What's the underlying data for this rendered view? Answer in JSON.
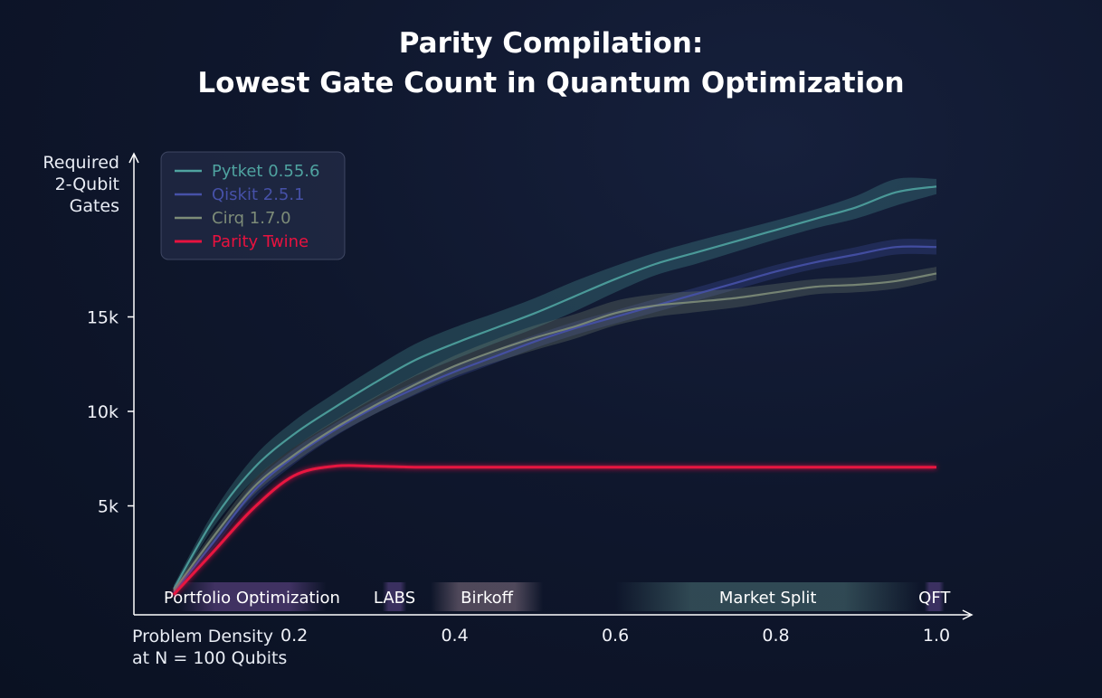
{
  "chart_data": {
    "type": "line",
    "title": "Parity Compilation:",
    "subtitle": "Lowest Gate Count in Quantum Optimization",
    "ylabel_lines": [
      "Required",
      "2-Qubit",
      "Gates"
    ],
    "xlabel_lines": [
      "Problem Density",
      "at N = 100 Qubits"
    ],
    "xlim": [
      0.05,
      1.0
    ],
    "ylim": [
      0,
      24000
    ],
    "x_ticks": [
      0.2,
      0.4,
      0.6,
      0.8,
      1.0
    ],
    "x_tick_labels": [
      "0.2",
      "0.4",
      "0.6",
      "0.8",
      "1.0"
    ],
    "y_ticks": [
      5000,
      10000,
      15000
    ],
    "y_tick_labels": [
      "5k",
      "10k",
      "15k"
    ],
    "legend_position": "top-left",
    "series": [
      {
        "name": "Pytket 0.55.6",
        "color": "#4fa3a0",
        "x": [
          0.05,
          0.1,
          0.15,
          0.2,
          0.25,
          0.3,
          0.35,
          0.4,
          0.45,
          0.5,
          0.55,
          0.6,
          0.65,
          0.7,
          0.75,
          0.8,
          0.85,
          0.9,
          0.95,
          1.0
        ],
        "y": [
          600,
          4300,
          7000,
          8800,
          10200,
          11500,
          12700,
          13600,
          14400,
          15200,
          16100,
          17000,
          17800,
          18400,
          19000,
          19600,
          20200,
          20800,
          21600,
          21900
        ],
        "band": [
          200,
          400,
          600,
          700,
          750,
          800,
          850,
          850,
          800,
          800,
          800,
          700,
          600,
          600,
          550,
          500,
          500,
          600,
          700,
          400
        ]
      },
      {
        "name": "Qiskit 2.5.1",
        "color": "#4651a8",
        "x": [
          0.05,
          0.1,
          0.15,
          0.2,
          0.25,
          0.3,
          0.35,
          0.4,
          0.45,
          0.5,
          0.55,
          0.6,
          0.65,
          0.7,
          0.75,
          0.8,
          0.85,
          0.9,
          0.95,
          1.0
        ],
        "y": [
          400,
          3100,
          5800,
          7600,
          9000,
          10200,
          11200,
          12100,
          12900,
          13700,
          14400,
          15000,
          15600,
          16200,
          16800,
          17400,
          17900,
          18300,
          18700,
          18700
        ],
        "band": [
          150,
          300,
          400,
          400,
          350,
          350,
          350,
          350,
          350,
          350,
          350,
          350,
          350,
          350,
          350,
          350,
          350,
          400,
          400,
          400
        ]
      },
      {
        "name": "Cirq 1.7.0",
        "color": "#7d8c78",
        "x": [
          0.05,
          0.1,
          0.15,
          0.2,
          0.25,
          0.3,
          0.35,
          0.4,
          0.45,
          0.5,
          0.55,
          0.6,
          0.65,
          0.7,
          0.75,
          0.8,
          0.85,
          0.9,
          0.95,
          1.0
        ],
        "y": [
          500,
          3400,
          6000,
          7700,
          9100,
          10300,
          11400,
          12400,
          13200,
          13900,
          14500,
          15200,
          15600,
          15800,
          16000,
          16300,
          16600,
          16700,
          16900,
          17300
        ],
        "band": [
          150,
          300,
          400,
          400,
          400,
          450,
          500,
          550,
          600,
          650,
          650,
          650,
          600,
          550,
          500,
          450,
          400,
          400,
          400,
          350
        ]
      },
      {
        "name": "Parity Twine",
        "color": "#e8123f",
        "x": [
          0.05,
          0.1,
          0.15,
          0.2,
          0.25,
          0.3,
          0.35,
          0.4,
          0.45,
          0.5,
          0.6,
          0.7,
          0.8,
          0.9,
          1.0
        ],
        "y": [
          300,
          2600,
          4900,
          6600,
          7100,
          7100,
          7050,
          7050,
          7050,
          7050,
          7050,
          7050,
          7050,
          7050,
          7050
        ],
        "band": [
          0,
          0,
          0,
          0,
          0,
          0,
          0,
          0,
          0,
          0,
          0,
          0,
          0,
          0,
          0
        ]
      }
    ],
    "regions": [
      {
        "label": "Portfolio Optimization",
        "x_start": 0.055,
        "x_end": 0.24,
        "color": "#a06ad0"
      },
      {
        "label": "LABS",
        "x_start": 0.31,
        "x_end": 0.34,
        "color": "#8e63c6"
      },
      {
        "label": "Birkoff",
        "x_start": 0.37,
        "x_end": 0.51,
        "color": "#c9a8b6"
      },
      {
        "label": "Market Split",
        "x_start": 0.6,
        "x_end": 0.98,
        "color": "#6fa8a0"
      },
      {
        "label": "QFT",
        "x_start": 0.985,
        "x_end": 1.01,
        "color": "#8e63c6"
      }
    ]
  }
}
